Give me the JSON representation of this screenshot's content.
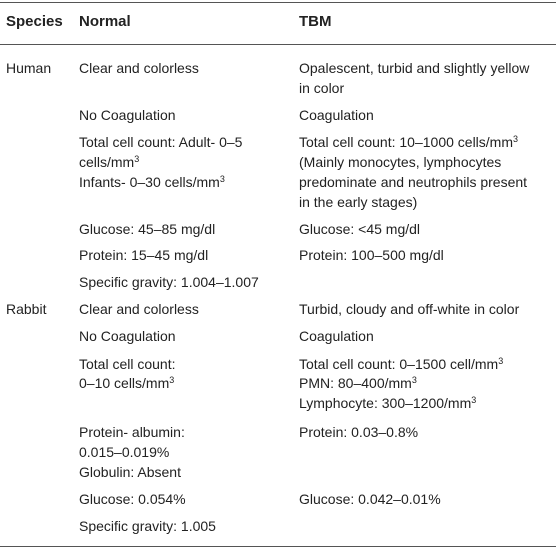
{
  "header": {
    "species": "Species",
    "normal": "Normal",
    "tbm": "TBM"
  },
  "human": {
    "label": "Human",
    "appearance_normal": "Clear and colorless",
    "appearance_tbm_1": "Opalescent, turbid and slightly yellow",
    "appearance_tbm_2": "in color",
    "coag_normal": "No Coagulation",
    "coag_tbm": "Coagulation",
    "cell_normal_1": "Total cell count: Adult- 0–5",
    "cell_normal_2": "cells/mm",
    "cell_normal_3": "Infants- 0–30 cells/mm",
    "cell_tbm_1": "Total cell count: 10–1000 cells/mm",
    "cell_tbm_2": "(Mainly monocytes, lymphocytes",
    "cell_tbm_3": "predominate and neutrophils present",
    "cell_tbm_4": "in the early stages)",
    "glucose_normal": "Glucose: 45–85 mg/dl",
    "glucose_tbm": "Glucose: <45 mg/dl",
    "protein_normal": "Protein: 15–45 mg/dl",
    "protein_tbm": "Protein: 100–500 mg/dl",
    "gravity_normal": "Specific gravity: 1.004–1.007"
  },
  "rabbit": {
    "label": "Rabbit",
    "appearance_normal": "Clear and colorless",
    "appearance_tbm": "Turbid, cloudy and off-white in color",
    "coag_normal": "No Coagulation",
    "coag_tbm": "Coagulation",
    "cell_normal_1": "Total cell count:",
    "cell_normal_2": "0–10 cells/mm",
    "cell_tbm_1": "Total cell count: 0–1500 cell/mm",
    "cell_tbm_2": "PMN: 80–400/mm",
    "cell_tbm_3": "Lymphocyte: 300–1200/mm",
    "protein_normal_1": "Protein- albumin:",
    "protein_normal_2": "0.015–0.019%",
    "protein_normal_3": "Globulin: Absent",
    "protein_tbm": "Protein: 0.03–0.8%",
    "glucose_normal": "Glucose: 0.054%",
    "glucose_tbm": "Glucose: 0.042–0.01%",
    "gravity_normal": "Specific gravity: 1.005"
  },
  "units": {
    "cube": "3"
  }
}
